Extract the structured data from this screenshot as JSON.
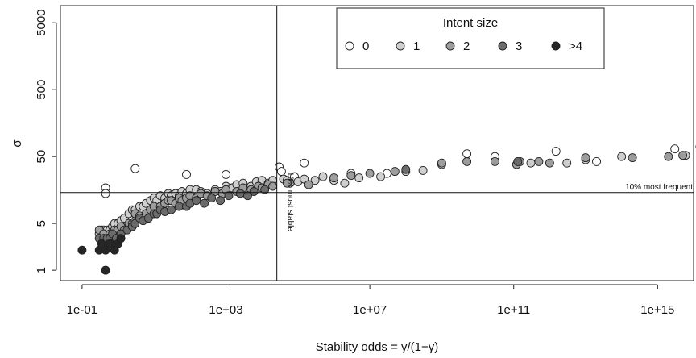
{
  "chart_data": {
    "type": "scatter",
    "title": "",
    "xlabel": "Stability odds = γ/(1−γ)",
    "ylabel": "σ",
    "x_scale": "log10",
    "y_scale": "log10",
    "xlim": [
      0.025,
      1e+16
    ],
    "ylim": [
      0.7,
      9000
    ],
    "x_ticks": [
      {
        "value": 0.1,
        "label": "1e-01"
      },
      {
        "value": 1000,
        "label": "1e+03"
      },
      {
        "value": 10000000,
        "label": "1e+07"
      },
      {
        "value": 100000000000,
        "label": "1e+11"
      },
      {
        "value": 1000000000000000,
        "label": "1e+15"
      }
    ],
    "y_ticks": [
      {
        "value": 1,
        "label": "1"
      },
      {
        "value": 5,
        "label": "5"
      },
      {
        "value": 50,
        "label": "50"
      },
      {
        "value": 500,
        "label": "500"
      },
      {
        "value": 5000,
        "label": "5000"
      }
    ],
    "grid": false,
    "legend": {
      "title": "Intent size",
      "placement": "top-center",
      "entries": [
        {
          "label": "0",
          "color": "#ffffff"
        },
        {
          "label": "1",
          "color": "#cfcfcf"
        },
        {
          "label": "2",
          "color": "#9d9d9d"
        },
        {
          "label": "3",
          "color": "#6b6b6b"
        },
        {
          "label": ">4",
          "color": "#262626"
        }
      ]
    },
    "reference_lines": [
      {
        "orientation": "vertical",
        "x": 26000,
        "label": "10% most stable"
      },
      {
        "orientation": "horizontal",
        "y": 14.5,
        "label": "10% most frequent"
      }
    ],
    "series": [
      {
        "name": "0",
        "points": [
          [
            0.45,
            17
          ],
          [
            0.45,
            14
          ],
          [
            3,
            33
          ],
          [
            80,
            27
          ],
          [
            1000,
            27
          ],
          [
            30000,
            35
          ],
          [
            35000,
            30
          ],
          [
            80000,
            25
          ],
          [
            150000,
            40
          ],
          [
            3000000,
            28
          ],
          [
            30000000,
            28
          ],
          [
            5000000000,
            55
          ],
          [
            30000000000,
            50
          ],
          [
            1500000000000.0,
            60
          ],
          [
            20000000000000.0,
            42
          ],
          [
            3000000000000000.0,
            65
          ],
          [
            1.5e+16,
            70
          ]
        ]
      },
      {
        "name": "1",
        "points": [
          [
            0.3,
            3.5
          ],
          [
            0.35,
            4
          ],
          [
            0.4,
            4
          ],
          [
            0.5,
            4
          ],
          [
            0.6,
            4
          ],
          [
            0.7,
            4.5
          ],
          [
            0.8,
            5
          ],
          [
            1,
            5
          ],
          [
            1.2,
            5.5
          ],
          [
            1.5,
            6
          ],
          [
            2,
            7
          ],
          [
            2.5,
            8
          ],
          [
            3,
            8
          ],
          [
            4,
            9
          ],
          [
            5,
            9
          ],
          [
            6,
            10
          ],
          [
            8,
            11
          ],
          [
            10,
            12
          ],
          [
            12,
            11
          ],
          [
            15,
            13
          ],
          [
            20,
            12
          ],
          [
            25,
            14
          ],
          [
            30,
            13
          ],
          [
            40,
            14
          ],
          [
            50,
            13
          ],
          [
            60,
            15
          ],
          [
            80,
            14
          ],
          [
            100,
            16
          ],
          [
            150,
            16
          ],
          [
            200,
            15
          ],
          [
            300,
            14
          ],
          [
            500,
            16
          ],
          [
            700,
            15
          ],
          [
            1000,
            18
          ],
          [
            1500,
            17
          ],
          [
            2000,
            19
          ],
          [
            3000,
            20
          ],
          [
            5000,
            18
          ],
          [
            7000,
            21
          ],
          [
            10000,
            22
          ],
          [
            15000,
            20
          ],
          [
            20000,
            22
          ],
          [
            40000,
            23
          ],
          [
            50000,
            22
          ],
          [
            60000,
            20
          ],
          [
            100000,
            21
          ],
          [
            150000,
            23
          ],
          [
            300000,
            22
          ],
          [
            500000,
            25
          ],
          [
            1000000,
            22
          ],
          [
            2000000,
            20
          ],
          [
            5000000,
            24
          ],
          [
            20000000,
            25
          ],
          [
            100000000,
            30
          ],
          [
            300000000,
            31
          ],
          [
            1000000000,
            38
          ],
          [
            300000000000.0,
            40
          ],
          [
            3000000000000.0,
            40
          ],
          [
            10000000000000.0,
            45
          ],
          [
            100000000000000.0,
            50
          ],
          [
            6000000000000000.0,
            52
          ]
        ]
      },
      {
        "name": "2",
        "points": [
          [
            0.3,
            4
          ],
          [
            0.4,
            3.5
          ],
          [
            0.5,
            3
          ],
          [
            0.6,
            3.5
          ],
          [
            0.8,
            4
          ],
          [
            1,
            4
          ],
          [
            1.2,
            4.5
          ],
          [
            1.5,
            4
          ],
          [
            2,
            5
          ],
          [
            2.5,
            5
          ],
          [
            3,
            5.5
          ],
          [
            3,
            7
          ],
          [
            4,
            6.5
          ],
          [
            5,
            6
          ],
          [
            6,
            7
          ],
          [
            8,
            8
          ],
          [
            10,
            9
          ],
          [
            15,
            9
          ],
          [
            20,
            10
          ],
          [
            25,
            11
          ],
          [
            30,
            11
          ],
          [
            40,
            10
          ],
          [
            50,
            12
          ],
          [
            60,
            11
          ],
          [
            80,
            12
          ],
          [
            100,
            13
          ],
          [
            150,
            12
          ],
          [
            200,
            14
          ],
          [
            300,
            13
          ],
          [
            500,
            15
          ],
          [
            800,
            14
          ],
          [
            1000,
            16
          ],
          [
            2000,
            15
          ],
          [
            3000,
            17
          ],
          [
            5000,
            16
          ],
          [
            8000,
            18
          ],
          [
            10000,
            17
          ],
          [
            15000,
            19
          ],
          [
            20000,
            18
          ],
          [
            50000,
            20
          ],
          [
            200000,
            19
          ],
          [
            1000000,
            24
          ],
          [
            3000000,
            26
          ],
          [
            10000000,
            28
          ],
          [
            50000000,
            30
          ],
          [
            1000000000,
            40
          ],
          [
            5000000000,
            42
          ],
          [
            30000000000,
            42
          ],
          [
            120000000000.0,
            38
          ],
          [
            150000000000.0,
            42
          ],
          [
            500000000000.0,
            42
          ],
          [
            1000000000000.0,
            40
          ],
          [
            10000000000000.0,
            48
          ],
          [
            200000000000000.0,
            48
          ],
          [
            2000000000000000.0,
            50
          ],
          [
            5000000000000000.0,
            52
          ]
        ]
      },
      {
        "name": "3",
        "points": [
          [
            0.3,
            3
          ],
          [
            0.4,
            3
          ],
          [
            0.5,
            3
          ],
          [
            0.6,
            3
          ],
          [
            0.7,
            3.5
          ],
          [
            0.9,
            3
          ],
          [
            1.2,
            3.5
          ],
          [
            1.8,
            4
          ],
          [
            2.5,
            4.5
          ],
          [
            3,
            5
          ],
          [
            4,
            6
          ],
          [
            5,
            5.5
          ],
          [
            7,
            6
          ],
          [
            10,
            7
          ],
          [
            12,
            7
          ],
          [
            15,
            8
          ],
          [
            20,
            7.5
          ],
          [
            30,
            8
          ],
          [
            50,
            9
          ],
          [
            80,
            9
          ],
          [
            100,
            10
          ],
          [
            150,
            11
          ],
          [
            250,
            10
          ],
          [
            400,
            12
          ],
          [
            700,
            11
          ],
          [
            1200,
            13
          ],
          [
            2500,
            14
          ],
          [
            4000,
            13
          ],
          [
            6000,
            15
          ],
          [
            12000,
            16
          ],
          [
            100000000,
            32
          ],
          [
            130000000000.0,
            42
          ]
        ]
      },
      {
        "name": ">4",
        "points": [
          [
            0.1,
            2
          ],
          [
            0.3,
            2
          ],
          [
            0.35,
            2.5
          ],
          [
            0.45,
            1
          ],
          [
            0.45,
            2
          ],
          [
            0.6,
            2.5
          ],
          [
            0.8,
            2
          ],
          [
            1,
            2.5
          ],
          [
            1.2,
            3
          ]
        ]
      }
    ]
  }
}
